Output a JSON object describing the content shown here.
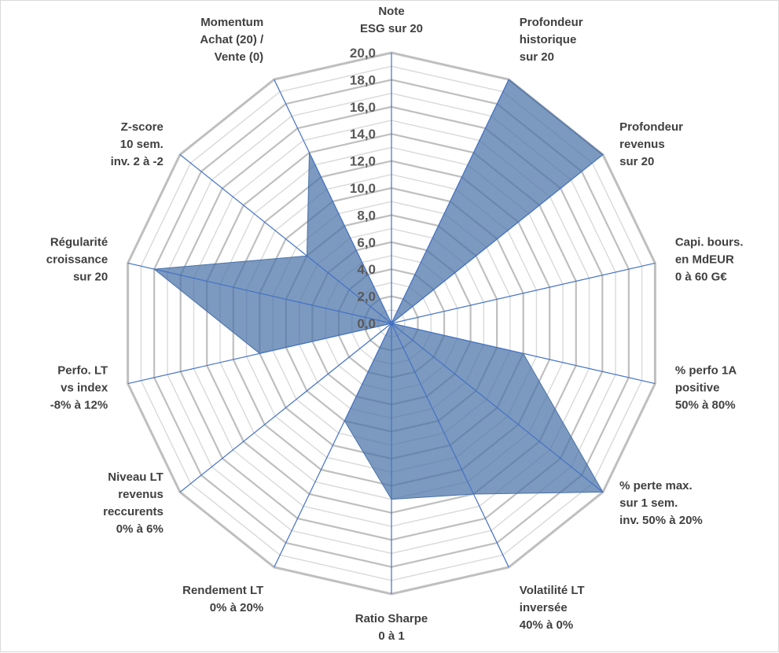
{
  "chart_data": {
    "type": "radar",
    "title": "",
    "categories": [
      [
        "Note",
        "ESG sur 20"
      ],
      [
        "Profondeur",
        "historique",
        "sur 20"
      ],
      [
        "Profondeur",
        "revenus",
        "sur 20"
      ],
      [
        "Capi. bours.",
        "en MdEUR",
        "0 à 60 G€"
      ],
      [
        "% perfo 1A",
        "positive",
        "50% à 80%"
      ],
      [
        "% perte max.",
        "sur 1 sem.",
        "inv. 50% à 20%"
      ],
      [
        "Volatilité LT",
        "inversée",
        "40% à 0%"
      ],
      [
        "Ratio Sharpe",
        "0 à 1"
      ],
      [
        "Rendement LT",
        "0% à 20%"
      ],
      [
        "Niveau LT",
        "revenus",
        "reccurents",
        "0% à 6%"
      ],
      [
        "Perfo. LT",
        "vs index",
        "-8% à 12%"
      ],
      [
        "Régularité",
        "croissance",
        "sur 20"
      ],
      [
        "Z-score",
        "10 sem.",
        "inv. 2 à -2"
      ],
      [
        "Momentum",
        "Achat (20) /",
        "Vente (0)"
      ]
    ],
    "tick_labels": [
      "0,0",
      "2,0",
      "4,0",
      "6,0",
      "8,0",
      "10,0",
      "12,0",
      "14,0",
      "16,0",
      "18,0",
      "20,0"
    ],
    "rlim": [
      0,
      20
    ],
    "grid_step": 1,
    "series": [
      {
        "values": [
          0,
          20,
          20,
          0,
          10,
          20,
          14,
          13,
          8,
          0,
          10,
          18,
          8,
          14
        ],
        "fill": "#4a72a8",
        "fill_opacity": 0.72,
        "stroke": "#4a72a8"
      }
    ],
    "grid_color": "#d9d9d9",
    "major_grid_color": "#bfbfbf",
    "spoke_color": "#4472c4",
    "legend": "none"
  }
}
